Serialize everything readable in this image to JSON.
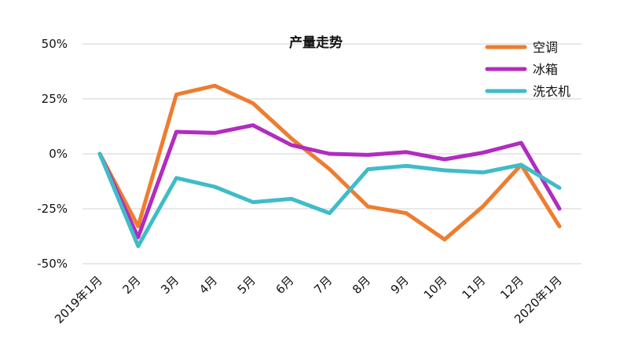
{
  "chart_data": {
    "type": "line",
    "title": "产量走势",
    "xlabel": "",
    "ylabel": "",
    "categories": [
      "2019年1月",
      "2月",
      "3月",
      "4月",
      "5月",
      "6月",
      "7月",
      "8月",
      "9月",
      "10月",
      "11月",
      "12月",
      "2020年1月"
    ],
    "y_ticks": [
      "50%",
      "25%",
      "0%",
      "-25%",
      "-50%"
    ],
    "y_tick_values": [
      50,
      25,
      0,
      -25,
      -50
    ],
    "ylim": [
      -50,
      50
    ],
    "grid": true,
    "legend_position": "top-right",
    "series": [
      {
        "name": "空调",
        "color": "#ED7D31",
        "values": [
          0,
          -33,
          27,
          31,
          23,
          7,
          -7,
          -24,
          -27,
          -39,
          -24,
          -5,
          -33
        ]
      },
      {
        "name": "冰箱",
        "color": "#B12CC0",
        "values": [
          0,
          -38,
          10,
          9.5,
          13,
          4,
          0,
          -0.5,
          0.8,
          -2.5,
          0.5,
          5,
          -25
        ]
      },
      {
        "name": "洗衣机",
        "color": "#40BCC8",
        "values": [
          0,
          -42,
          -11,
          -15,
          -22,
          -20.5,
          -27,
          -7,
          -5.5,
          -7.5,
          -8.5,
          -5,
          -15.5
        ]
      }
    ]
  }
}
